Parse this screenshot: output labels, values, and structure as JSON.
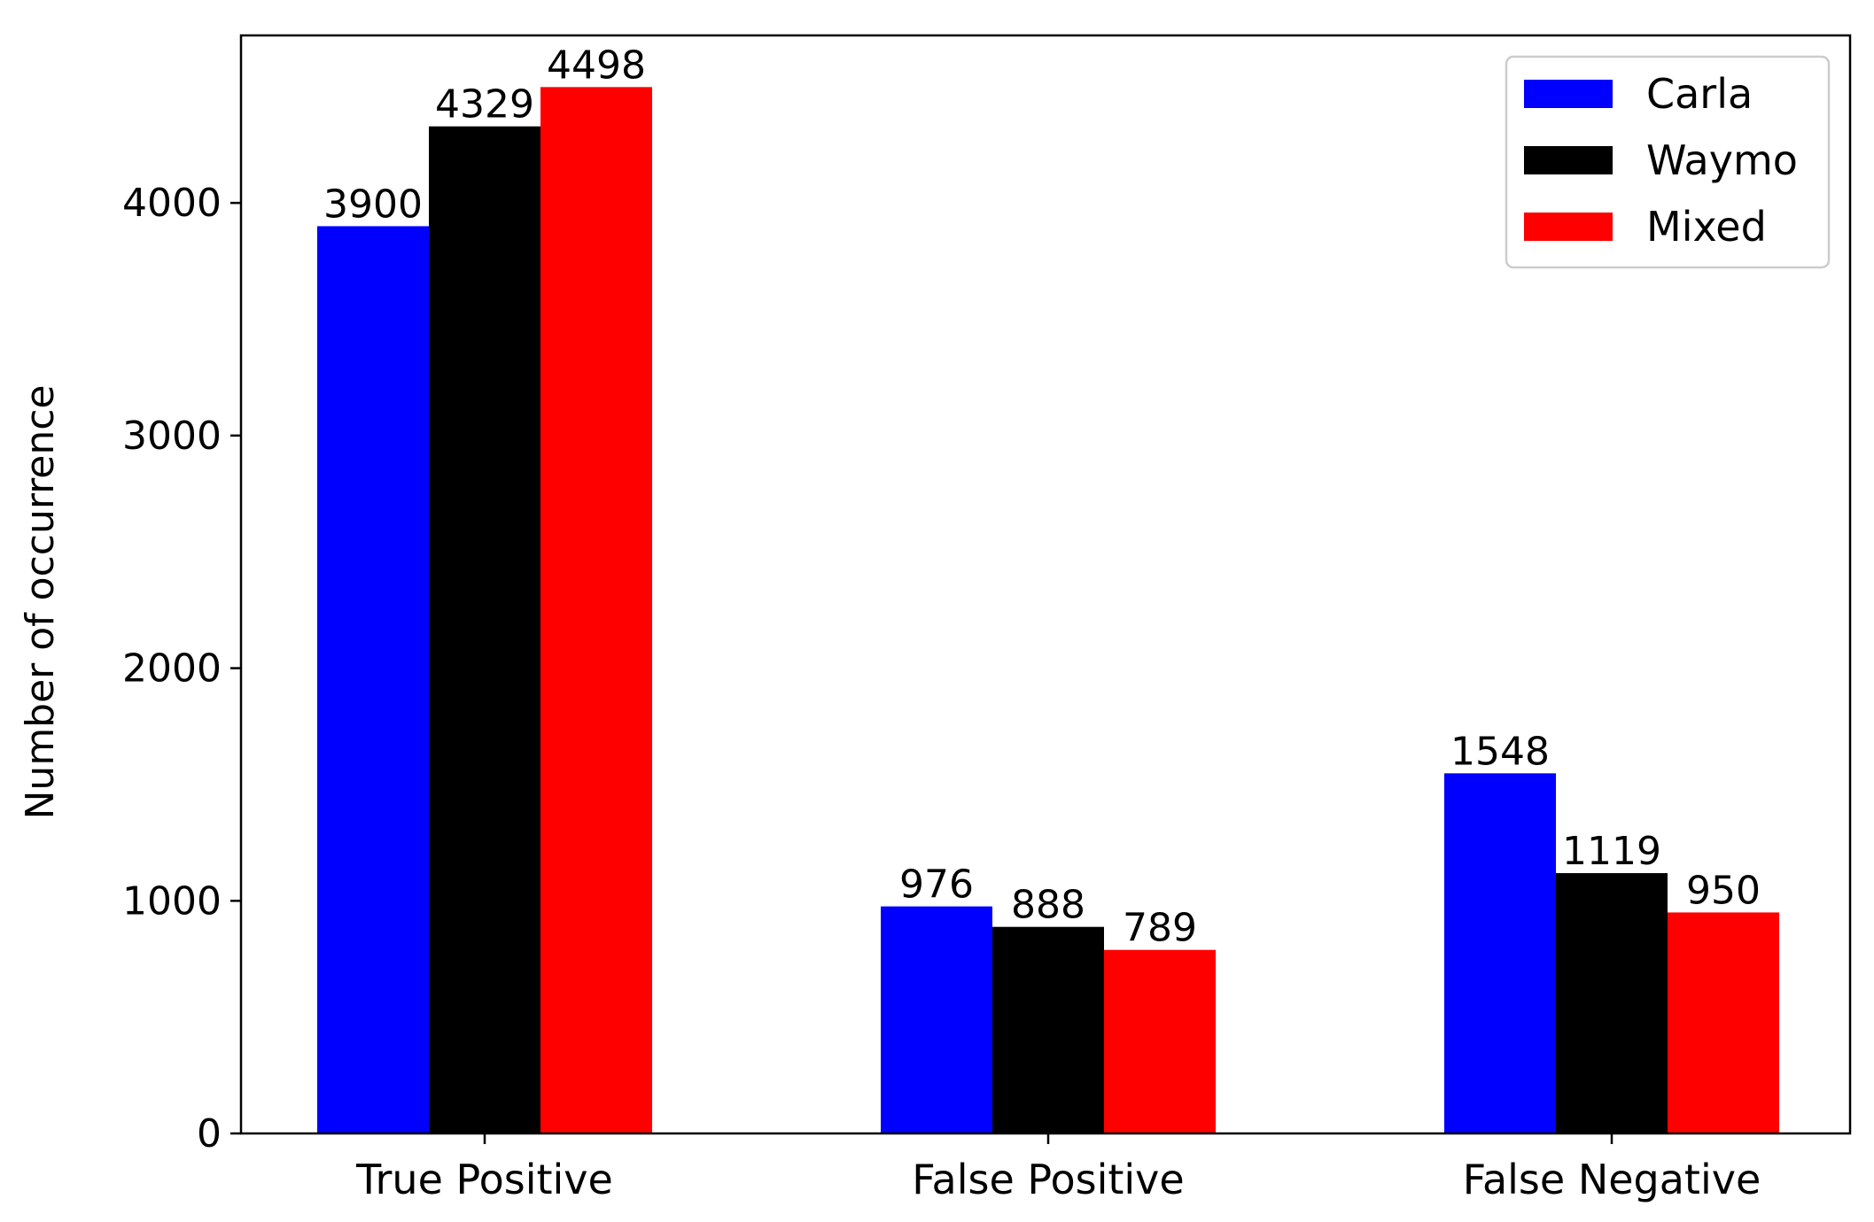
{
  "chart_data": {
    "type": "bar",
    "title": "",
    "xlabel": "",
    "ylabel": "Number of occurrence",
    "categories": [
      "True Positive",
      "False Positive",
      "False Negative"
    ],
    "series": [
      {
        "name": "Carla",
        "color": "#0000ff",
        "values": [
          3900,
          976,
          1548
        ],
        "labels": [
          "3900",
          "976",
          "1548"
        ]
      },
      {
        "name": "Waymo",
        "color": "#000000",
        "values": [
          4329,
          888,
          1119
        ],
        "labels": [
          "4329",
          "888",
          "1119"
        ]
      },
      {
        "name": "Mixed",
        "color": "#ff0000",
        "values": [
          4498,
          789,
          950
        ],
        "labels": [
          "4498",
          "789",
          "950"
        ]
      }
    ],
    "ylim": [
      0,
      4720
    ],
    "yticks": [
      0,
      1000,
      2000,
      3000,
      4000
    ],
    "ytick_labels": [
      "0",
      "1000",
      "2000",
      "3000",
      "4000"
    ],
    "grid": false,
    "legend_position": "top-right"
  }
}
